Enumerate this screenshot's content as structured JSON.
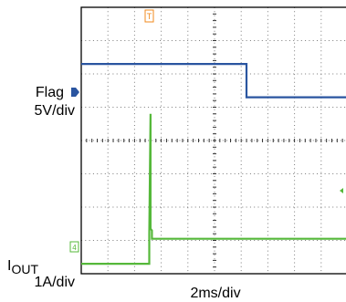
{
  "chart_data": {
    "type": "line",
    "title": "",
    "xlabel": "2ms/div",
    "ylabel": "",
    "grid": true,
    "xlim": [
      0,
      10
    ],
    "ylim": [
      0,
      8
    ],
    "x_unit": "div",
    "y_unit": "div",
    "series": [
      {
        "name": "Flag",
        "scale": "5V/div",
        "color": "#2a55a0",
        "x": [
          0,
          6.2,
          6.2,
          10
        ],
        "y": [
          6.3,
          6.3,
          5.3,
          5.3
        ]
      },
      {
        "name": "I OUT",
        "scale": "1A/div",
        "color": "#55b83a",
        "x": [
          0,
          2.55,
          2.55,
          2.6,
          2.6,
          2.65,
          2.65,
          10
        ],
        "y": [
          0.3,
          0.3,
          1.2,
          4.8,
          1.35,
          1.3,
          1.05,
          1.05
        ]
      }
    ]
  },
  "labels": {
    "flag_name": "Flag",
    "flag_scale": "5V/div",
    "iout_main": "I",
    "iout_sub": "OUT",
    "iout_scale": "1A/div",
    "time_scale": "2ms/div",
    "trigger_marker": "T",
    "flag_marker": "1",
    "iout_marker": "4"
  },
  "colors": {
    "flag_trace": "#2a55a0",
    "iout_trace": "#55b83a",
    "trigger_marker": "#f08a1c",
    "frame": "#000000",
    "grid_dots": "#7a7a7a"
  }
}
